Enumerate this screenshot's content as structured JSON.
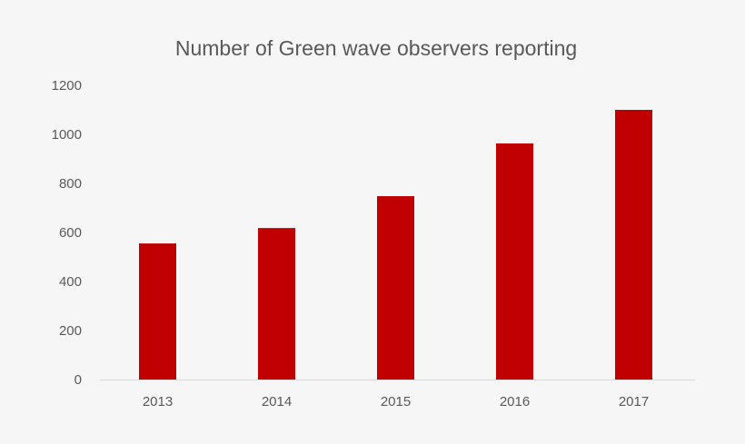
{
  "chart_data": {
    "type": "bar",
    "title": "Number of Green wave observers reporting",
    "categories": [
      "2013",
      "2014",
      "2015",
      "2016",
      "2017"
    ],
    "values": [
      555,
      618,
      748,
      963,
      1100
    ],
    "xlabel": "",
    "ylabel": "",
    "ylim": [
      0,
      1200
    ],
    "yticks": [
      "0",
      "200",
      "400",
      "600",
      "800",
      "1000",
      "1200"
    ],
    "grid": false,
    "legend": "none",
    "bar_color": "#c00000",
    "background": "#f6f6f6"
  }
}
